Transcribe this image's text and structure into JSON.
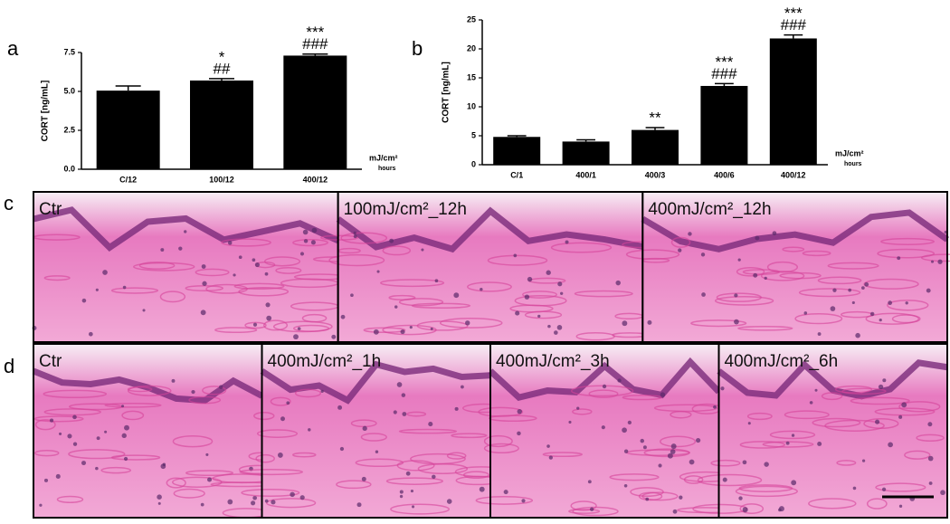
{
  "chart_data": [
    {
      "type": "bar",
      "panel_label": "a",
      "y_label": "CORT [ng/mL]",
      "x_unit": "mJ/cm²",
      "x_unit_sub": "hours",
      "categories": [
        "C/12",
        "100/12",
        "400/12"
      ],
      "values": [
        5.05,
        5.7,
        7.3
      ],
      "errors": [
        0.3,
        0.12,
        0.1
      ],
      "annotations": [
        [],
        [
          "*",
          "##"
        ],
        [
          "***",
          "###"
        ]
      ],
      "color": "#000000",
      "ylim": [
        0,
        7.5
      ],
      "yticks": [
        {
          "value": 0,
          "label": "0.0"
        },
        2.5,
        {
          "value": 5,
          "label": "5.0"
        },
        7.5
      ]
    },
    {
      "type": "bar",
      "panel_label": "b",
      "y_label": "CORT [ng/mL]",
      "x_unit": "mJ/cm²",
      "x_unit_sub": "hours",
      "categories": [
        "C/1",
        "400/1",
        "400/3",
        "400/6",
        "400/12"
      ],
      "values": [
        4.8,
        4.0,
        6.0,
        13.6,
        21.8
      ],
      "errors": [
        0.2,
        0.3,
        0.4,
        0.4,
        0.6
      ],
      "annotations": [
        [],
        [],
        [
          "**"
        ],
        [
          "***",
          "###"
        ],
        [
          "***",
          "###"
        ]
      ],
      "color": "#000000",
      "ylim": [
        0,
        25
      ],
      "yticks": [
        0,
        5,
        10,
        15,
        20,
        25
      ]
    }
  ],
  "histology": [
    {
      "panel_label": "c",
      "images": [
        "Ctr",
        "100mJ/cm²_12h",
        "400mJ/cm²_12h"
      ]
    },
    {
      "panel_label": "d",
      "images": [
        "Ctr",
        "400mJ/cm²_1h",
        "400mJ/cm²_3h",
        "400mJ/cm²_6h"
      ]
    }
  ]
}
